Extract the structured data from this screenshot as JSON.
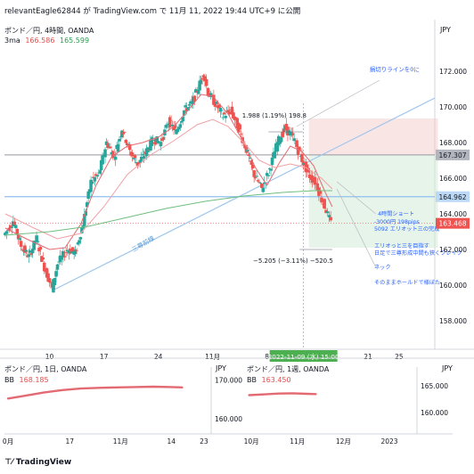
{
  "header": {
    "published": "relevantEagle62844 が TradingView.com で 11月 11, 2022 19:44 UTC+9 に公開",
    "symbol_title": "ポンド／円, 4時間, OANDA",
    "indicator_name": "3ma",
    "indicator_v1": "166.586",
    "indicator_v2": "165.599",
    "currency": "JPY"
  },
  "chart_data": [
    {
      "type": "candlestick",
      "title": "ポンド／円, 4時間, OANDA",
      "y_ticks": [
        "172.000",
        "170.000",
        "168.000",
        "166.000",
        "164.000",
        "162.000",
        "160.000",
        "158.000"
      ],
      "ylim": [
        156.4,
        173.4
      ],
      "x_ticks": [
        "10",
        "17",
        "24",
        "11月",
        "8",
        "21",
        "25"
      ],
      "x_tick_pos": [
        10,
        17,
        24,
        31,
        38,
        51,
        55
      ],
      "xlim": [
        4.2,
        59.6
      ],
      "last_date": 46.4,
      "price_labels": [
        {
          "text": "167.307",
          "value": 167.307,
          "bg": "#b2b5be",
          "fg": "#131722"
        },
        {
          "text": "164.962",
          "value": 164.962,
          "bg": "#bbd9f5",
          "fg": "#131722"
        },
        {
          "text": "163.468",
          "value": 163.468,
          "bg": "#ef5350",
          "fg": "#ffffff"
        }
      ],
      "price_path": [
        [
          4.3,
          162.8
        ],
        [
          5.5,
          163.6
        ],
        [
          6.5,
          162.2
        ],
        [
          7.5,
          161.6
        ],
        [
          8.5,
          162.6
        ],
        [
          9.5,
          161.0
        ],
        [
          10.5,
          159.8
        ],
        [
          11.2,
          161.2
        ],
        [
          12.5,
          162.0
        ],
        [
          13.5,
          161.8
        ],
        [
          14.5,
          163.5
        ],
        [
          15.5,
          165.8
        ],
        [
          16.5,
          166.2
        ],
        [
          17.5,
          168.0
        ],
        [
          18.5,
          167.2
        ],
        [
          19.5,
          168.8
        ],
        [
          20.5,
          167.5
        ],
        [
          21.5,
          166.8
        ],
        [
          22.5,
          167.4
        ],
        [
          23.5,
          168.2
        ],
        [
          24.5,
          168.0
        ],
        [
          25.5,
          169.2
        ],
        [
          26.5,
          168.6
        ],
        [
          27.5,
          169.8
        ],
        [
          28.5,
          170.2
        ],
        [
          29.5,
          171.3
        ],
        [
          30.0,
          171.9
        ],
        [
          30.6,
          170.8
        ],
        [
          31.5,
          170.2
        ],
        [
          32.5,
          169.5
        ],
        [
          33.5,
          169.8
        ],
        [
          34.5,
          168.8
        ],
        [
          35.5,
          167.6
        ],
        [
          36.5,
          166.2
        ],
        [
          37.5,
          165.4
        ],
        [
          38.5,
          166.5
        ],
        [
          39.5,
          168.0
        ],
        [
          40.5,
          168.8
        ],
        [
          41.5,
          168.3
        ],
        [
          42.5,
          167.2
        ],
        [
          43.5,
          166.2
        ],
        [
          44.5,
          165.7
        ],
        [
          45.2,
          164.8
        ],
        [
          45.8,
          164.2
        ],
        [
          46.4,
          163.47
        ]
      ],
      "series": [
        {
          "name": "3ma short",
          "color": "#e36a72",
          "values": [
            [
              4.3,
              163.2
            ],
            [
              7,
              162.6
            ],
            [
              10,
              162.0
            ],
            [
              12,
              162.1
            ],
            [
              14,
              163.4
            ],
            [
              16,
              165.6
            ],
            [
              18,
              167.2
            ],
            [
              20,
              167.8
            ],
            [
              22,
              168.0
            ],
            [
              24,
              168.3
            ],
            [
              26,
              168.9
            ],
            [
              28,
              169.9
            ],
            [
              29.5,
              170.7
            ],
            [
              31,
              170.6
            ],
            [
              33,
              169.6
            ],
            [
              35,
              168.0
            ],
            [
              36.5,
              166.6
            ],
            [
              38,
              165.6
            ],
            [
              39.5,
              166.8
            ],
            [
              41,
              167.8
            ],
            [
              42.5,
              167.5
            ],
            [
              44,
              166.7
            ],
            [
              45.5,
              165.2
            ],
            [
              46.4,
              164.4
            ]
          ]
        },
        {
          "name": "3ma mid",
          "color": "#f0a0a4",
          "values": [
            [
              4.3,
              164.0
            ],
            [
              8,
              163.2
            ],
            [
              11,
              162.6
            ],
            [
              14,
              162.9
            ],
            [
              17,
              164.4
            ],
            [
              20,
              166.2
            ],
            [
              23,
              167.3
            ],
            [
              26,
              168.1
            ],
            [
              29,
              169.0
            ],
            [
              31,
              169.3
            ],
            [
              33,
              168.9
            ],
            [
              35,
              168.0
            ],
            [
              37,
              167.0
            ],
            [
              39,
              166.6
            ],
            [
              41,
              166.8
            ],
            [
              43,
              166.6
            ],
            [
              45,
              166.0
            ],
            [
              46.4,
              165.4
            ]
          ]
        },
        {
          "name": "3ma long",
          "color": "#6fbf7e",
          "values": [
            [
              4.3,
              162.8
            ],
            [
              10,
              163.0
            ],
            [
              15,
              163.3
            ],
            [
              20,
              163.8
            ],
            [
              25,
              164.3
            ],
            [
              30,
              164.7
            ],
            [
              35,
              165.0
            ],
            [
              40,
              165.2
            ],
            [
              44,
              165.3
            ],
            [
              46.4,
              165.3
            ]
          ]
        }
      ],
      "annotations": {
        "callout_top": "損切りラインを0に",
        "measure_top": "1.988 (1.19%) 198.8",
        "measure_bottom": "−5.205 (−3.11%) −520.5",
        "trendline_label": "三尊前線",
        "x_highlight": "2022-11-09 (水)   15:00",
        "note_title": "4時間ショート",
        "note_lines": [
          "-3000円 198pips",
          "5092 エリオット三の完成"
        ],
        "note_text2": [
          "エリオっと三を目指す",
          "日足で三尊形成中間も狭くブレイク"
        ],
        "note_text3": "ネック",
        "note_text4": "そのままホールドで様ぼた"
      }
    },
    {
      "type": "line",
      "title": "ポンド／円, 1日, OANDA",
      "indicator": "BB",
      "indicator_value": "168.185",
      "currency": "JPY",
      "y_ticks": [
        "170.000",
        "160.000"
      ],
      "ylim": [
        156,
        172
      ],
      "x_ticks": [
        "0月",
        "17",
        "11月",
        "14",
        "23"
      ],
      "x_tick_pos": [
        0,
        17,
        31,
        45,
        54
      ],
      "xlim": [
        -1,
        56
      ],
      "series": [
        {
          "name": "BB",
          "color": "#e36a72",
          "values": [
            [
              0,
              165.2
            ],
            [
              5,
              166.0
            ],
            [
              10,
              166.8
            ],
            [
              15,
              167.4
            ],
            [
              20,
              167.8
            ],
            [
              25,
              168.0
            ],
            [
              30,
              168.1
            ],
            [
              35,
              168.2
            ],
            [
              40,
              168.3
            ],
            [
              45,
              168.2
            ],
            [
              48,
              168.1
            ]
          ]
        }
      ]
    },
    {
      "type": "line",
      "title": "ポンド／円, 1週, OANDA",
      "indicator": "BB",
      "indicator_value": "163.450",
      "currency": "JPY",
      "y_ticks": [
        "165.000",
        "160.000"
      ],
      "ylim": [
        156,
        167.5
      ],
      "x_ticks": [
        "10月",
        "11月",
        "12月",
        "2023"
      ],
      "x_tick_pos": [
        0,
        1,
        2,
        3
      ],
      "xlim": [
        -0.1,
        3.6
      ],
      "series": [
        {
          "name": "BB",
          "color": "#e36a72",
          "values": [
            [
              -0.05,
              163.25
            ],
            [
              0.3,
              163.4
            ],
            [
              0.6,
              163.55
            ],
            [
              0.9,
              163.6
            ],
            [
              1.2,
              163.5
            ],
            [
              1.4,
              163.45
            ]
          ]
        }
      ]
    }
  ],
  "footer": {
    "brand": "TradingView"
  }
}
